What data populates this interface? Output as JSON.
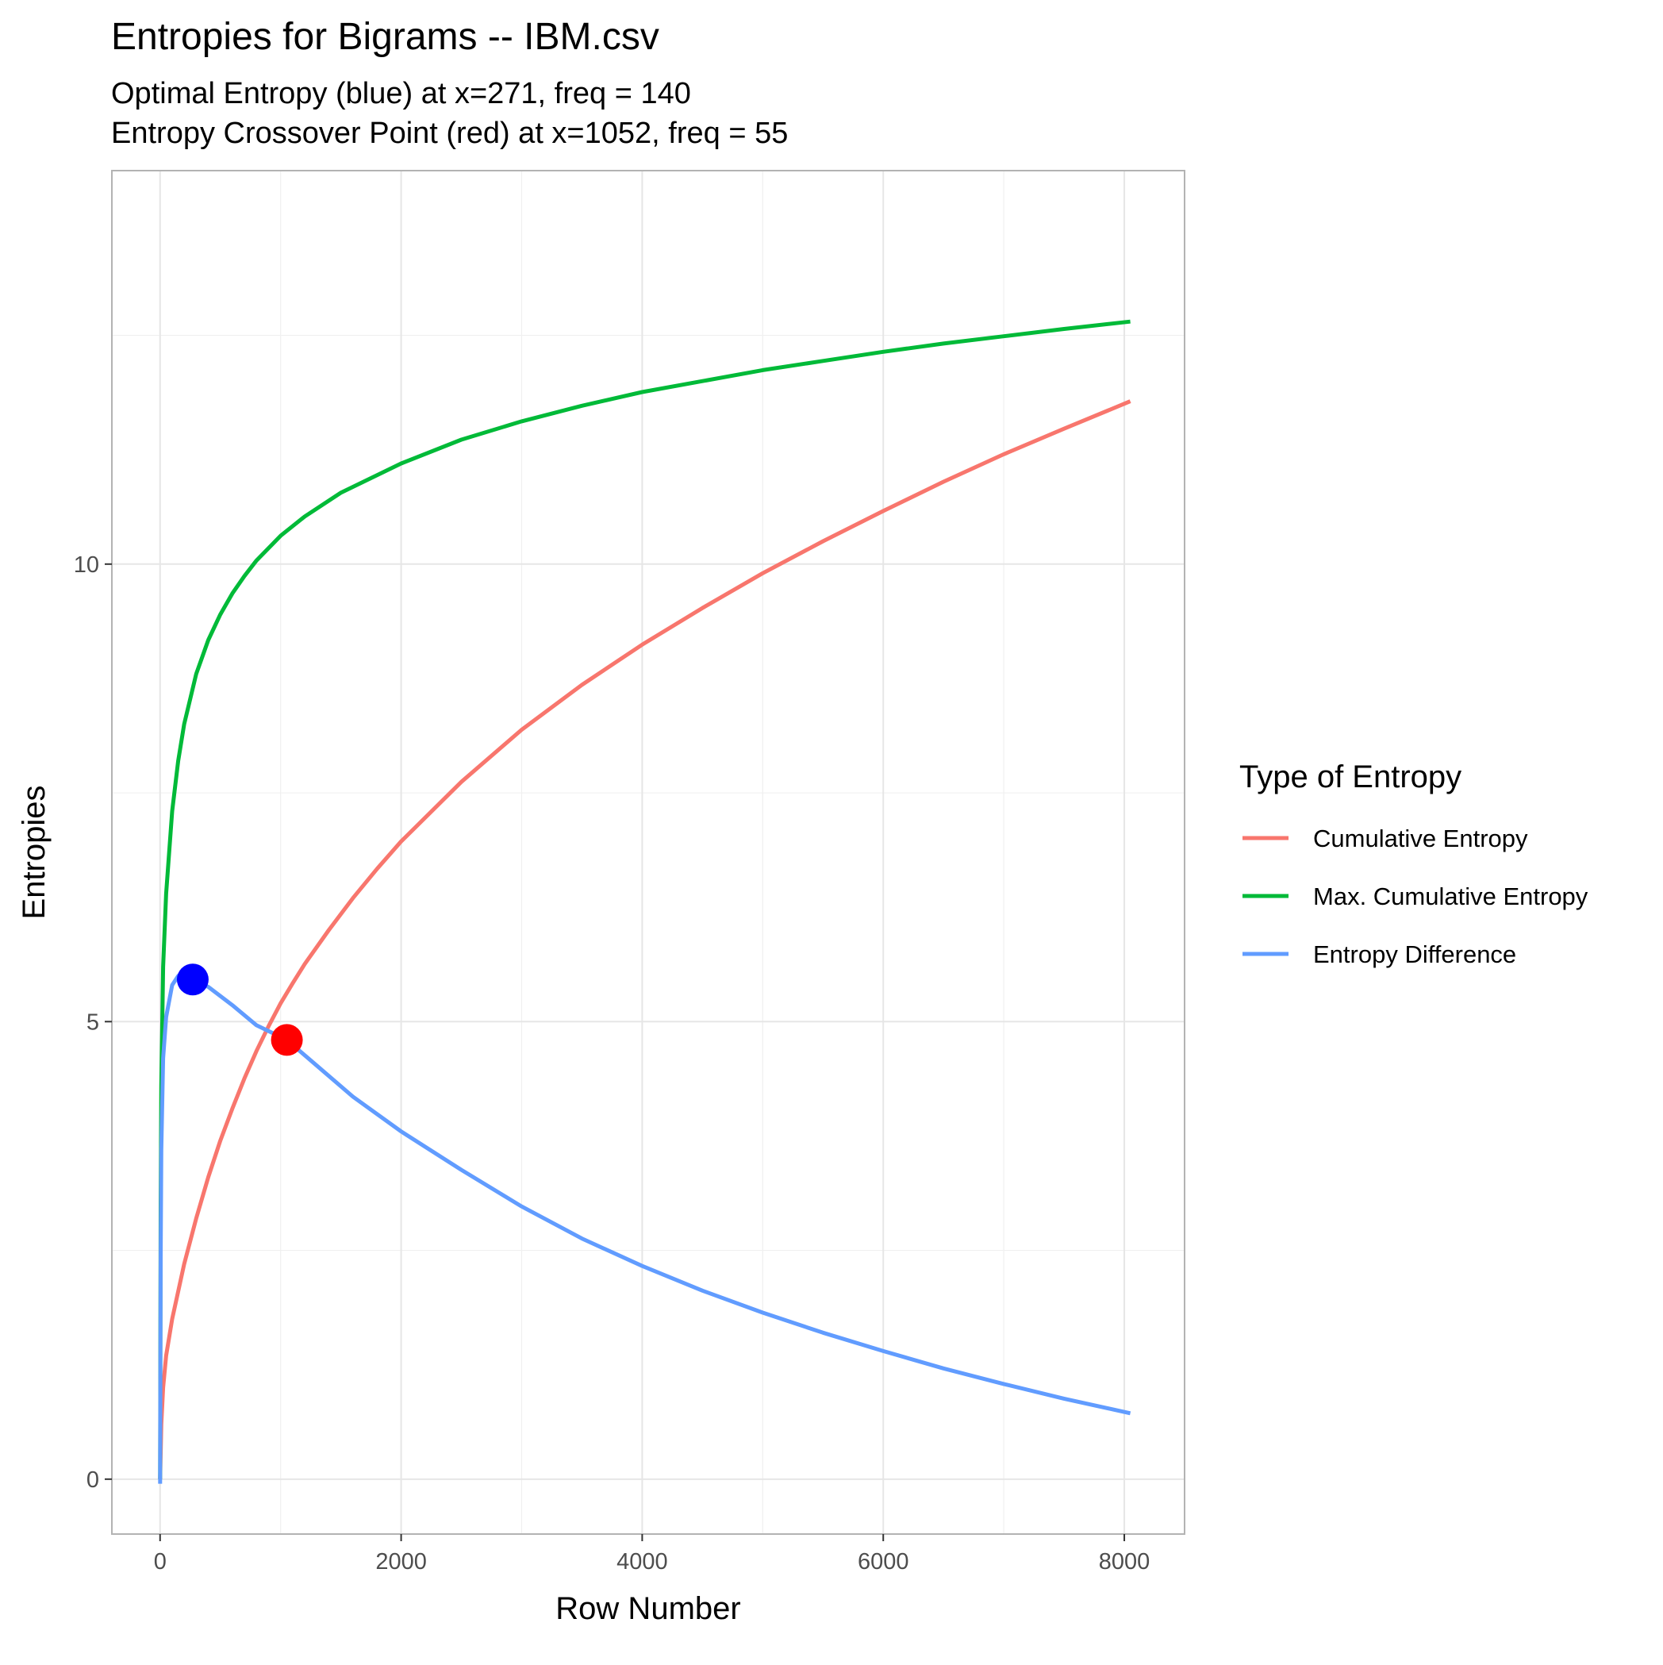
{
  "chart_data": {
    "type": "line",
    "title": "Entropies for Bigrams -- IBM.csv",
    "subtitle_lines": [
      "Optimal Entropy (blue) at x=271, freq = 140",
      "Entropy Crossover Point (red) at x=1052, freq = 55"
    ],
    "xlabel": "Row Number",
    "ylabel": "Entropies",
    "xlim": [
      -400,
      8500
    ],
    "ylim": [
      -0.6,
      14.3
    ],
    "x_ticks": [
      0,
      2000,
      4000,
      6000,
      8000
    ],
    "y_ticks": [
      0,
      5,
      10
    ],
    "grid": true,
    "legend": {
      "title": "Type of Entropy",
      "position": "right"
    },
    "series": [
      {
        "name": "Cumulative Entropy",
        "color": "#F8766D",
        "x": [
          0,
          10,
          25,
          50,
          100,
          200,
          300,
          400,
          500,
          600,
          700,
          800,
          900,
          1000,
          1100,
          1200,
          1400,
          1600,
          1800,
          2000,
          2500,
          3000,
          3500,
          4000,
          4500,
          5000,
          5500,
          6000,
          6500,
          7000,
          7500,
          8050
        ],
        "y": [
          0,
          0.6,
          1.0,
          1.35,
          1.75,
          2.35,
          2.85,
          3.3,
          3.7,
          4.05,
          4.38,
          4.68,
          4.95,
          5.2,
          5.42,
          5.63,
          6.0,
          6.35,
          6.67,
          6.97,
          7.62,
          8.19,
          8.68,
          9.12,
          9.52,
          9.9,
          10.25,
          10.58,
          10.9,
          11.2,
          11.48,
          11.78
        ]
      },
      {
        "name": "Max. Cumulative Entropy",
        "color": "#00BA38",
        "x": [
          0,
          5,
          10,
          25,
          50,
          100,
          150,
          200,
          300,
          400,
          500,
          600,
          700,
          800,
          1000,
          1200,
          1500,
          2000,
          2500,
          3000,
          3500,
          4000,
          4500,
          5000,
          5500,
          6000,
          6500,
          7000,
          7500,
          8050
        ],
        "y": [
          0,
          3.0,
          4.3,
          5.6,
          6.4,
          7.3,
          7.85,
          8.25,
          8.8,
          9.17,
          9.45,
          9.68,
          9.87,
          10.04,
          10.31,
          10.52,
          10.78,
          11.1,
          11.36,
          11.56,
          11.73,
          11.88,
          12.0,
          12.12,
          12.22,
          12.32,
          12.41,
          12.49,
          12.57,
          12.65
        ]
      },
      {
        "name": "Entropy Difference",
        "color": "#619CFF",
        "x": [
          0,
          5,
          10,
          25,
          50,
          100,
          150,
          200,
          271,
          400,
          600,
          800,
          1052,
          1300,
          1600,
          2000,
          2500,
          3000,
          3500,
          4000,
          4500,
          5000,
          5500,
          6000,
          6500,
          7000,
          7500,
          8050
        ],
        "y": [
          -0.05,
          2.4,
          3.6,
          4.6,
          5.05,
          5.4,
          5.5,
          5.52,
          5.46,
          5.38,
          5.18,
          4.96,
          4.8,
          4.52,
          4.18,
          3.8,
          3.38,
          2.98,
          2.63,
          2.33,
          2.06,
          1.82,
          1.6,
          1.4,
          1.21,
          1.04,
          0.88,
          0.72
        ]
      }
    ],
    "points": [
      {
        "label": "Optimal Entropy",
        "color": "#0000FF",
        "x": 271,
        "y": 5.46
      },
      {
        "label": "Entropy Crossover Point",
        "color": "#FF0000",
        "x": 1052,
        "y": 4.8
      }
    ]
  }
}
